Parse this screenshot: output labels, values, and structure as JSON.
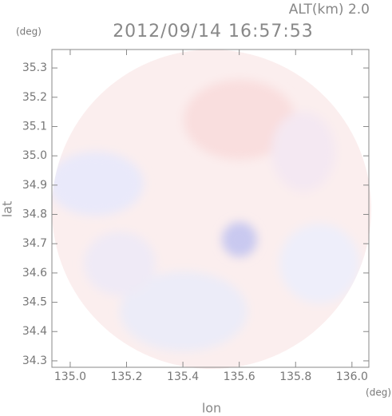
{
  "chart_data": {
    "type": "radar-map",
    "title": "2012/09/14 16:57:53",
    "altitude_label": "ALT(km) 2.0",
    "x_label": "lon",
    "y_label": "lat",
    "x_unit": "(deg)",
    "y_unit": "(deg)",
    "xlim": [
      134.935,
      136.06
    ],
    "ylim": [
      34.278,
      35.363
    ],
    "xticks": [
      {
        "value": 135.0,
        "label": "135.0"
      },
      135.2,
      135.4,
      135.6,
      135.8,
      {
        "value": 136.0,
        "label": "136.0"
      }
    ],
    "yticks": [
      34.3,
      34.4,
      34.5,
      34.6,
      34.7,
      34.8,
      34.9,
      {
        "value": 35.0,
        "label": "35.0"
      },
      35.1,
      35.2,
      35.3
    ]
  }
}
